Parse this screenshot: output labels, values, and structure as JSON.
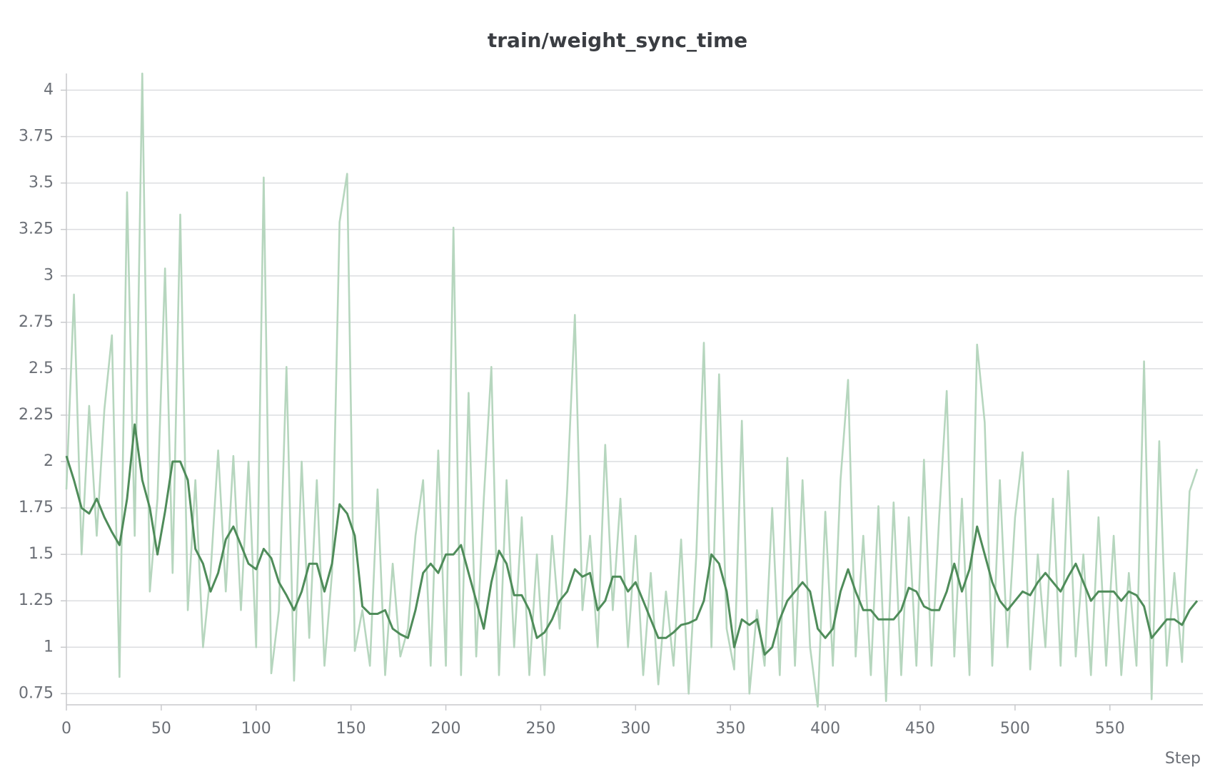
{
  "chart_data": {
    "type": "line",
    "title": "train/weight_sync_time",
    "xlabel": "Step",
    "x": [
      0,
      4,
      8,
      12,
      16,
      20,
      24,
      28,
      32,
      36,
      40,
      44,
      48,
      52,
      56,
      60,
      64,
      68,
      72,
      76,
      80,
      84,
      88,
      92,
      96,
      100,
      104,
      108,
      112,
      116,
      120,
      124,
      128,
      132,
      136,
      140,
      144,
      148,
      152,
      156,
      160,
      164,
      168,
      172,
      176,
      180,
      184,
      188,
      192,
      196,
      200,
      204,
      208,
      212,
      216,
      220,
      224,
      228,
      232,
      236,
      240,
      244,
      248,
      252,
      256,
      260,
      264,
      268,
      272,
      276,
      280,
      284,
      288,
      292,
      296,
      300,
      304,
      308,
      312,
      316,
      320,
      324,
      328,
      332,
      336,
      340,
      344,
      348,
      352,
      356,
      360,
      364,
      368,
      372,
      376,
      380,
      384,
      388,
      392,
      396,
      400,
      404,
      408,
      412,
      416,
      420,
      424,
      428,
      432,
      436,
      440,
      444,
      448,
      452,
      456,
      460,
      464,
      468,
      472,
      476,
      480,
      484,
      488,
      492,
      496,
      500,
      504,
      508,
      512,
      516,
      520,
      524,
      528,
      532,
      536,
      540,
      544,
      548,
      552,
      556,
      560,
      564,
      568,
      572,
      576,
      580,
      584,
      588,
      592,
      596
    ],
    "series": [
      {
        "color": "#b6d6be",
        "values": [
          1.85,
          2.9,
          1.5,
          2.3,
          1.6,
          2.28,
          2.68,
          0.84,
          3.45,
          1.6,
          4.09,
          1.3,
          1.8,
          3.04,
          1.4,
          3.33,
          1.2,
          1.9,
          1.0,
          1.4,
          2.06,
          1.3,
          2.03,
          1.2,
          2.0,
          1.0,
          3.53,
          0.86,
          1.2,
          2.51,
          0.82,
          2.0,
          1.05,
          1.9,
          0.9,
          1.4,
          3.29,
          3.55,
          0.98,
          1.2,
          0.9,
          1.85,
          0.85,
          1.45,
          0.95,
          1.1,
          1.6,
          1.9,
          0.9,
          2.06,
          0.9,
          3.26,
          0.85,
          2.37,
          0.95,
          1.8,
          2.51,
          0.85,
          1.9,
          1.0,
          1.7,
          0.85,
          1.5,
          0.85,
          1.6,
          1.1,
          1.85,
          2.79,
          1.2,
          1.6,
          1.0,
          2.09,
          1.2,
          1.8,
          1.0,
          1.6,
          0.85,
          1.4,
          0.8,
          1.3,
          0.9,
          1.58,
          0.75,
          1.5,
          2.64,
          1.0,
          2.47,
          1.1,
          0.88,
          2.22,
          0.75,
          1.2,
          0.9,
          1.75,
          0.85,
          2.02,
          0.9,
          1.9,
          1.0,
          0.68,
          1.73,
          0.9,
          1.9,
          2.44,
          0.95,
          1.6,
          0.85,
          1.76,
          0.71,
          1.78,
          0.85,
          1.7,
          0.9,
          2.01,
          0.9,
          1.7,
          2.38,
          0.95,
          1.8,
          0.85,
          2.63,
          2.21,
          0.9,
          1.9,
          1.0,
          1.7,
          2.05,
          0.88,
          1.5,
          1.0,
          1.8,
          0.9,
          1.95,
          0.95,
          1.5,
          0.85,
          1.7,
          0.9,
          1.6,
          0.85,
          1.4,
          0.9,
          2.54,
          0.72,
          2.11,
          0.9,
          1.4,
          0.92,
          1.84,
          1.96
        ]
      },
      {
        "color": "#4f8c5a",
        "values": [
          2.03,
          1.9,
          1.75,
          1.72,
          1.8,
          1.7,
          1.62,
          1.55,
          1.8,
          2.2,
          1.9,
          1.75,
          1.5,
          1.73,
          2.0,
          2.0,
          1.9,
          1.53,
          1.45,
          1.3,
          1.4,
          1.58,
          1.65,
          1.55,
          1.45,
          1.42,
          1.53,
          1.48,
          1.35,
          1.28,
          1.2,
          1.3,
          1.45,
          1.45,
          1.3,
          1.45,
          1.77,
          1.72,
          1.6,
          1.22,
          1.18,
          1.18,
          1.2,
          1.1,
          1.07,
          1.05,
          1.2,
          1.4,
          1.45,
          1.4,
          1.5,
          1.5,
          1.55,
          1.4,
          1.25,
          1.1,
          1.35,
          1.52,
          1.45,
          1.28,
          1.28,
          1.2,
          1.05,
          1.08,
          1.15,
          1.25,
          1.3,
          1.42,
          1.38,
          1.4,
          1.2,
          1.25,
          1.38,
          1.38,
          1.3,
          1.35,
          1.25,
          1.15,
          1.05,
          1.05,
          1.08,
          1.12,
          1.13,
          1.15,
          1.25,
          1.5,
          1.45,
          1.3,
          1.0,
          1.15,
          1.12,
          1.15,
          0.96,
          1.0,
          1.15,
          1.25,
          1.3,
          1.35,
          1.3,
          1.1,
          1.05,
          1.1,
          1.3,
          1.42,
          1.3,
          1.2,
          1.2,
          1.15,
          1.15,
          1.15,
          1.2,
          1.32,
          1.3,
          1.22,
          1.2,
          1.2,
          1.3,
          1.45,
          1.3,
          1.42,
          1.65,
          1.5,
          1.35,
          1.25,
          1.2,
          1.25,
          1.3,
          1.28,
          1.35,
          1.4,
          1.35,
          1.3,
          1.38,
          1.45,
          1.35,
          1.25,
          1.3,
          1.3,
          1.3,
          1.25,
          1.3,
          1.28,
          1.22,
          1.05,
          1.1,
          1.15,
          1.15,
          1.12,
          1.2,
          1.25
        ]
      }
    ],
    "xlim": [
      0,
      599
    ],
    "ylim": [
      0.69,
      4.09
    ],
    "xticks": [
      0,
      50,
      100,
      150,
      200,
      250,
      300,
      350,
      400,
      450,
      500,
      550
    ],
    "yticks": [
      0.75,
      1,
      1.25,
      1.5,
      1.75,
      2,
      2.25,
      2.5,
      2.75,
      3,
      3.25,
      3.5,
      3.75,
      4
    ],
    "grid": true
  }
}
